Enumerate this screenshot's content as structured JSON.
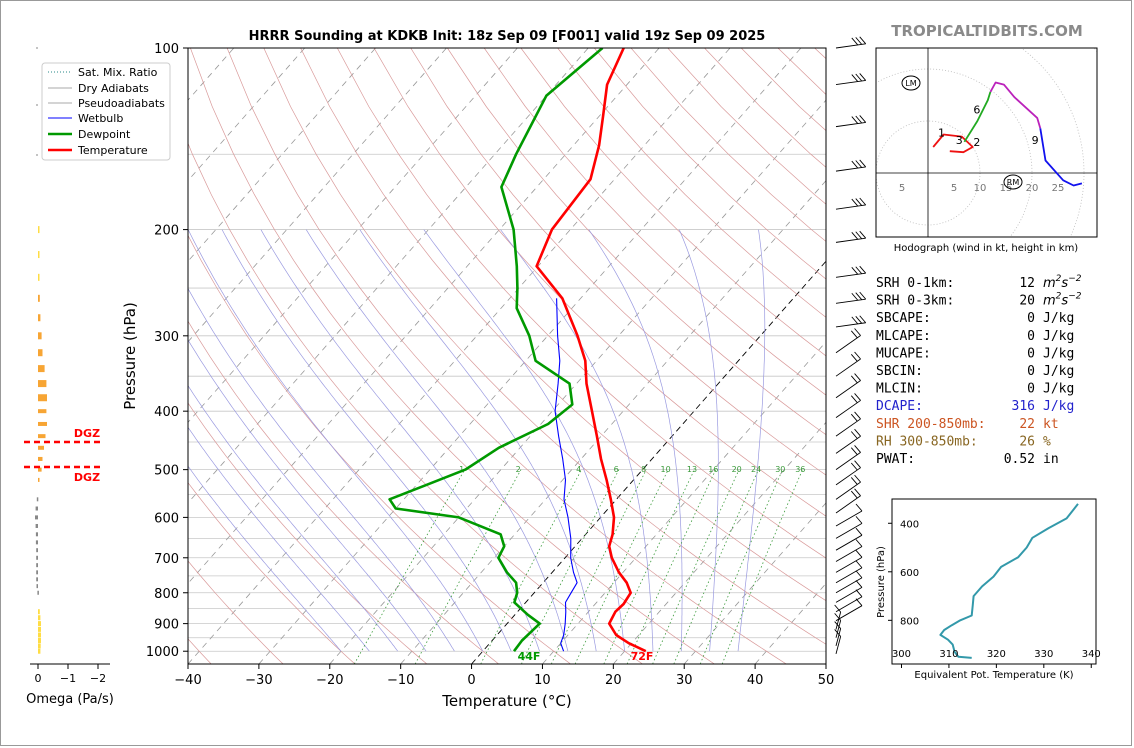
{
  "skewt": {
    "title": "HRRR Sounding at KDKB Init: 18z Sep 09 [F001] valid 19z Sep 09 2025",
    "ylabel": "Pressure (hPa)",
    "xlabel": "Temperature (°C)",
    "pressure_ticks": [
      "100",
      "200",
      "300",
      "400",
      "500",
      "600",
      "700",
      "800",
      "900",
      "1000"
    ],
    "temp_ticks": [
      "−40",
      "−30",
      "−20",
      "−10",
      "0",
      "10",
      "20",
      "30",
      "40",
      "50"
    ],
    "legend": [
      "Sat. Mix. Ratio",
      "Dry Adiabats",
      "Pseudoadiabats",
      "Wetbulb",
      "Dewpoint",
      "Temperature"
    ],
    "surface_dewpoint_label": "44F",
    "surface_temp_label": "72F",
    "mixing_ratio_labels": [
      "1",
      "2",
      "4",
      "6",
      "8",
      "10",
      "13",
      "16",
      "20",
      "24",
      "30",
      "36"
    ],
    "colors": {
      "temperature": "#ff0000",
      "dewpoint": "#009900",
      "wetbulb": "#0000ff",
      "dry_adiabat": "#d99a9a",
      "moist_adiabat": "#9a9ae0",
      "mixing_ratio": "#3a9a3a",
      "isotherm": "#888888"
    }
  },
  "omega": {
    "xlabel": "Omega (Pa/s)",
    "ticks": [
      "0",
      "−1",
      "−2"
    ],
    "dgz_label_top": "DGZ",
    "dgz_label_bottom": "DGZ",
    "dgz_top_hpa": 450,
    "dgz_bottom_hpa": 495
  },
  "brand": "TROPICALTIDBITS.COM",
  "hodograph": {
    "caption": "Hodograph (wind in kt, height in km)",
    "ring_labels": [
      "5",
      "5",
      "10",
      "15",
      "20",
      "25"
    ],
    "height_labels": [
      "1",
      "2",
      "3",
      "6",
      "9"
    ],
    "lm_label": "LM",
    "rm_label": "RM"
  },
  "params": [
    {
      "label": "SRH 0-1km:",
      "value": "12",
      "unit": "m2s-2",
      "color": "#000000"
    },
    {
      "label": "SRH 0-3km:",
      "value": "20",
      "unit": "m2s-2",
      "color": "#000000"
    },
    {
      "label": "SBCAPE:",
      "value": "0",
      "unit": "J/kg",
      "color": "#000000"
    },
    {
      "label": "MLCAPE:",
      "value": "0",
      "unit": "J/kg",
      "color": "#000000"
    },
    {
      "label": "MUCAPE:",
      "value": "0",
      "unit": "J/kg",
      "color": "#000000"
    },
    {
      "label": "SBCIN:",
      "value": "0",
      "unit": "J/kg",
      "color": "#000000"
    },
    {
      "label": "MLCIN:",
      "value": "0",
      "unit": "J/kg",
      "color": "#000000"
    },
    {
      "label": "DCAPE:",
      "value": "316",
      "unit": "J/kg",
      "color": "#2222cc"
    },
    {
      "label": "SHR 200-850mb:",
      "value": "22",
      "unit": "kt",
      "color": "#cc5522"
    },
    {
      "label": "RH 300-850mb:",
      "value": "26",
      "unit": "%",
      "color": "#886622"
    },
    {
      "label": "PWAT:",
      "value": "0.52",
      "unit": "in",
      "color": "#000000"
    }
  ],
  "theta_e": {
    "ylabel": "Pressure (hPa)",
    "xlabel": "Equivalent Pot. Temperature (K)",
    "x_ticks": [
      "300",
      "310",
      "320",
      "330",
      "340"
    ],
    "y_ticks": [
      "400",
      "600",
      "800"
    ]
  },
  "chart_data": [
    {
      "type": "line",
      "title": "HRRR Sounding at KDKB Init: 18z Sep 09 [F001] valid 19z Sep 09 2025",
      "xlabel": "Temperature (°C)",
      "ylabel": "Pressure (hPa)",
      "xlim": [
        -40,
        50
      ],
      "ylim": [
        1050,
        100
      ],
      "yscale": "log",
      "skew": true,
      "legend_position": "top-left",
      "series": [
        {
          "name": "Temperature",
          "color": "#ff0000",
          "points": [
            [
              1000,
              23.0
            ],
            [
              970,
              19.6
            ],
            [
              940,
              16.8
            ],
            [
              900,
              14.4
            ],
            [
              860,
              13.8
            ],
            [
              835,
              14.0
            ],
            [
              800,
              13.6
            ],
            [
              770,
              11.8
            ],
            [
              740,
              9.4
            ],
            [
              700,
              6.6
            ],
            [
              670,
              4.8
            ],
            [
              640,
              3.8
            ],
            [
              600,
              1.9
            ],
            [
              560,
              -0.8
            ],
            [
              520,
              -3.8
            ],
            [
              480,
              -7.2
            ],
            [
              440,
              -10.6
            ],
            [
              400,
              -14.4
            ],
            [
              360,
              -18.6
            ],
            [
              330,
              -21.6
            ],
            [
              300,
              -25.8
            ],
            [
              260,
              -32.6
            ],
            [
              230,
              -40.2
            ],
            [
              200,
              -42.6
            ],
            [
              165,
              -43.4
            ],
            [
              145,
              -46.4
            ],
            [
              130,
              -49.4
            ],
            [
              115,
              -52.8
            ],
            [
              100,
              -55.0
            ]
          ]
        },
        {
          "name": "Dewpoint",
          "color": "#009900",
          "points": [
            [
              1000,
              4.4
            ],
            [
              960,
              4.2
            ],
            [
              930,
              4.4
            ],
            [
              900,
              4.6
            ],
            [
              870,
              1.8
            ],
            [
              830,
              -1.6
            ],
            [
              800,
              -2.4
            ],
            [
              770,
              -3.8
            ],
            [
              740,
              -6.4
            ],
            [
              700,
              -9.4
            ],
            [
              670,
              -10.0
            ],
            [
              640,
              -12.0
            ],
            [
              600,
              -20.0
            ],
            [
              580,
              -30.0
            ],
            [
              560,
              -32.0
            ],
            [
              530,
              -28.6
            ],
            [
              500,
              -25.0
            ],
            [
              460,
              -23.0
            ],
            [
              420,
              -19.0
            ],
            [
              390,
              -18.0
            ],
            [
              360,
              -21.0
            ],
            [
              330,
              -28.6
            ],
            [
              300,
              -32.6
            ],
            [
              270,
              -37.8
            ],
            [
              250,
              -40.2
            ],
            [
              230,
              -43.0
            ],
            [
              200,
              -48.0
            ],
            [
              170,
              -55.0
            ],
            [
              150,
              -57.0
            ],
            [
              120,
              -60.0
            ],
            [
              100,
              -58.0
            ]
          ]
        },
        {
          "name": "Wetbulb",
          "color": "#0000ff",
          "points": [
            [
              1000,
              11.4
            ],
            [
              970,
              10.0
            ],
            [
              940,
              9.4
            ],
            [
              900,
              8.2
            ],
            [
              860,
              6.8
            ],
            [
              830,
              5.6
            ],
            [
              800,
              5.2
            ],
            [
              770,
              4.8
            ],
            [
              740,
              3.0
            ],
            [
              700,
              0.8
            ],
            [
              650,
              -1.6
            ],
            [
              600,
              -4.6
            ],
            [
              560,
              -7.4
            ],
            [
              520,
              -9.6
            ],
            [
              480,
              -12.6
            ],
            [
              440,
              -16.0
            ],
            [
              400,
              -19.6
            ],
            [
              360,
              -22.6
            ],
            [
              330,
              -25.2
            ],
            [
              300,
              -28.6
            ],
            [
              260,
              -33.4
            ]
          ]
        }
      ]
    },
    {
      "type": "bar",
      "title": "",
      "xlabel": "Omega (Pa/s)",
      "xlim": [
        0.5,
        -2.6
      ],
      "orientation": "horizontal",
      "series": [
        {
          "name": "Omega",
          "values": [
            [
              1000,
              -0.08
            ],
            [
              980,
              -0.09
            ],
            [
              960,
              -0.1
            ],
            [
              940,
              -0.1
            ],
            [
              920,
              -0.1
            ],
            [
              900,
              -0.1
            ],
            [
              880,
              -0.08
            ],
            [
              860,
              -0.06
            ],
            [
              800,
              0.02
            ],
            [
              780,
              0.05
            ],
            [
              760,
              0.06
            ],
            [
              740,
              0.06
            ],
            [
              720,
              0.06
            ],
            [
              700,
              0.06
            ],
            [
              680,
              0.06
            ],
            [
              660,
              0.07
            ],
            [
              640,
              0.07
            ],
            [
              620,
              0.08
            ],
            [
              600,
              0.1
            ],
            [
              580,
              0.08
            ],
            [
              560,
              0.04
            ],
            [
              520,
              -0.04
            ],
            [
              500,
              -0.12
            ],
            [
              480,
              -0.15
            ],
            [
              460,
              -0.2
            ],
            [
              440,
              -0.25
            ],
            [
              420,
              -0.3
            ],
            [
              400,
              -0.28
            ],
            [
              380,
              -0.3
            ],
            [
              360,
              -0.28
            ],
            [
              340,
              -0.22
            ],
            [
              320,
              -0.15
            ],
            [
              300,
              -0.12
            ],
            [
              280,
              -0.08
            ],
            [
              260,
              -0.06
            ],
            [
              240,
              -0.05
            ],
            [
              220,
              -0.04
            ],
            [
              200,
              -0.03
            ]
          ]
        }
      ]
    },
    {
      "type": "line",
      "title": "",
      "xlabel": "Equivalent Pot. Temperature (K)",
      "ylabel": "Pressure (hPa)",
      "xlim": [
        298,
        341
      ],
      "ylim": [
        980,
        300
      ],
      "series": [
        {
          "name": "Theta-e",
          "color": "#3399aa",
          "points": [
            [
              955,
              314.8
            ],
            [
              950,
              312.0
            ],
            [
              930,
              311.2
            ],
            [
              900,
              310.8
            ],
            [
              880,
              309.8
            ],
            [
              860,
              308.2
            ],
            [
              840,
              309.0
            ],
            [
              820,
              310.6
            ],
            [
              800,
              312.4
            ],
            [
              780,
              314.8
            ],
            [
              740,
              315.0
            ],
            [
              700,
              315.2
            ],
            [
              660,
              317.0
            ],
            [
              620,
              319.4
            ],
            [
              580,
              321.0
            ],
            [
              540,
              324.6
            ],
            [
              500,
              326.4
            ],
            [
              460,
              327.6
            ],
            [
              420,
              331.0
            ],
            [
              380,
              334.8
            ],
            [
              340,
              336.4
            ],
            [
              320,
              337.2
            ]
          ]
        }
      ]
    },
    {
      "type": "line",
      "title": "Hodograph (wind in kt, height in km)",
      "series": [
        {
          "name": "",
          "color": "#ee1111",
          "points": [
            [
              1.0,
              5.0
            ],
            [
              3.0,
              7.4
            ],
            [
              6.5,
              7.0
            ],
            [
              8.6,
              5.0
            ],
            [
              6.8,
              4.0
            ],
            [
              4.2,
              4.2
            ]
          ]
        },
        {
          "name": "",
          "color": "#22aa22",
          "points": [
            [
              7.0,
              6.0
            ],
            [
              9.5,
              10.0
            ],
            [
              11.5,
              14.0
            ],
            [
              12.0,
              15.6
            ]
          ]
        },
        {
          "name": "",
          "color": "#bb22bb",
          "points": [
            [
              12.0,
              15.6
            ],
            [
              13.0,
              17.4
            ],
            [
              14.6,
              17.0
            ],
            [
              16.6,
              14.6
            ],
            [
              21.0,
              10.6
            ],
            [
              21.6,
              8.6
            ]
          ]
        },
        {
          "name": "",
          "color": "#1111ee",
          "points": [
            [
              21.6,
              8.6
            ],
            [
              22.6,
              2.4
            ],
            [
              26.0,
              -1.4
            ],
            [
              28.0,
              -2.4
            ],
            [
              29.6,
              -2.0
            ]
          ]
        }
      ]
    }
  ]
}
